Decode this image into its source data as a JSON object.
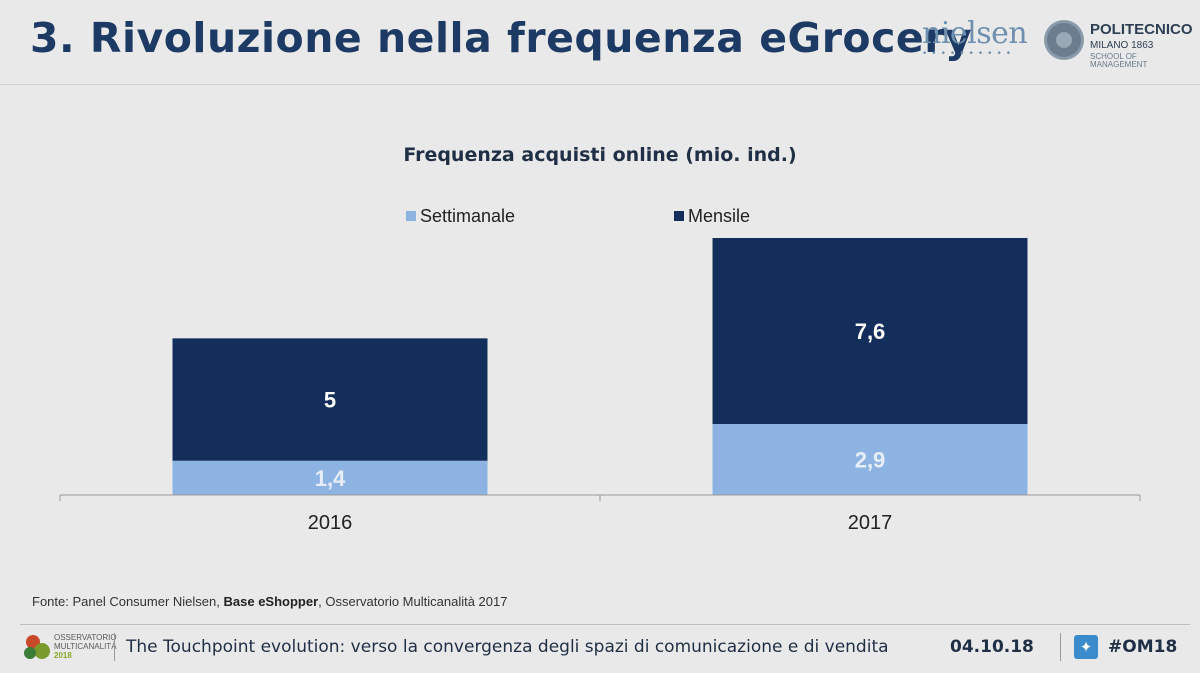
{
  "header": {
    "title": "3. Rivoluzione nella frequenza eGrocery",
    "logo_nielsen": "nielsen",
    "logo_poli_name": "POLITECNICO",
    "logo_poli_city": "MILANO 1863",
    "logo_poli_school": "SCHOOL OF MANAGEMENT"
  },
  "colors": {
    "title": "#1c3a64",
    "mensile": "#142e5c",
    "settimanale": "#8db3e2",
    "background": "#e9e9e9"
  },
  "chart_data": {
    "type": "bar",
    "stacked": true,
    "title": "Frequenza acquisti online (mio. ind.)",
    "categories": [
      "2016",
      "2017"
    ],
    "series": [
      {
        "name": "Settimanale",
        "values": [
          1.4,
          2.9
        ],
        "labels": [
          "1,4",
          "2,9"
        ],
        "color": "#8db3e2"
      },
      {
        "name": "Mensile",
        "values": [
          5,
          7.6
        ],
        "labels": [
          "5",
          "7,6"
        ],
        "color": "#142e5c"
      }
    ],
    "ylim": [
      0,
      10.5
    ],
    "legend_position": "top",
    "grid": false
  },
  "source": {
    "prefix": "Fonte: Panel Consumer Nielsen,",
    "bold": "Base eShopper",
    "suffix": ", Osservatorio Multicanalità 2017"
  },
  "footer": {
    "om_line1": "OSSERVATORIO",
    "om_line2": "MULTICANALITÀ",
    "om_year": "2018",
    "text": "The Touchpoint evolution: verso la convergenza degli spazi di comunicazione e di vendita",
    "date": "04.10.18",
    "twitter_icon": "twitter-icon",
    "hashtag": "#OM18"
  }
}
